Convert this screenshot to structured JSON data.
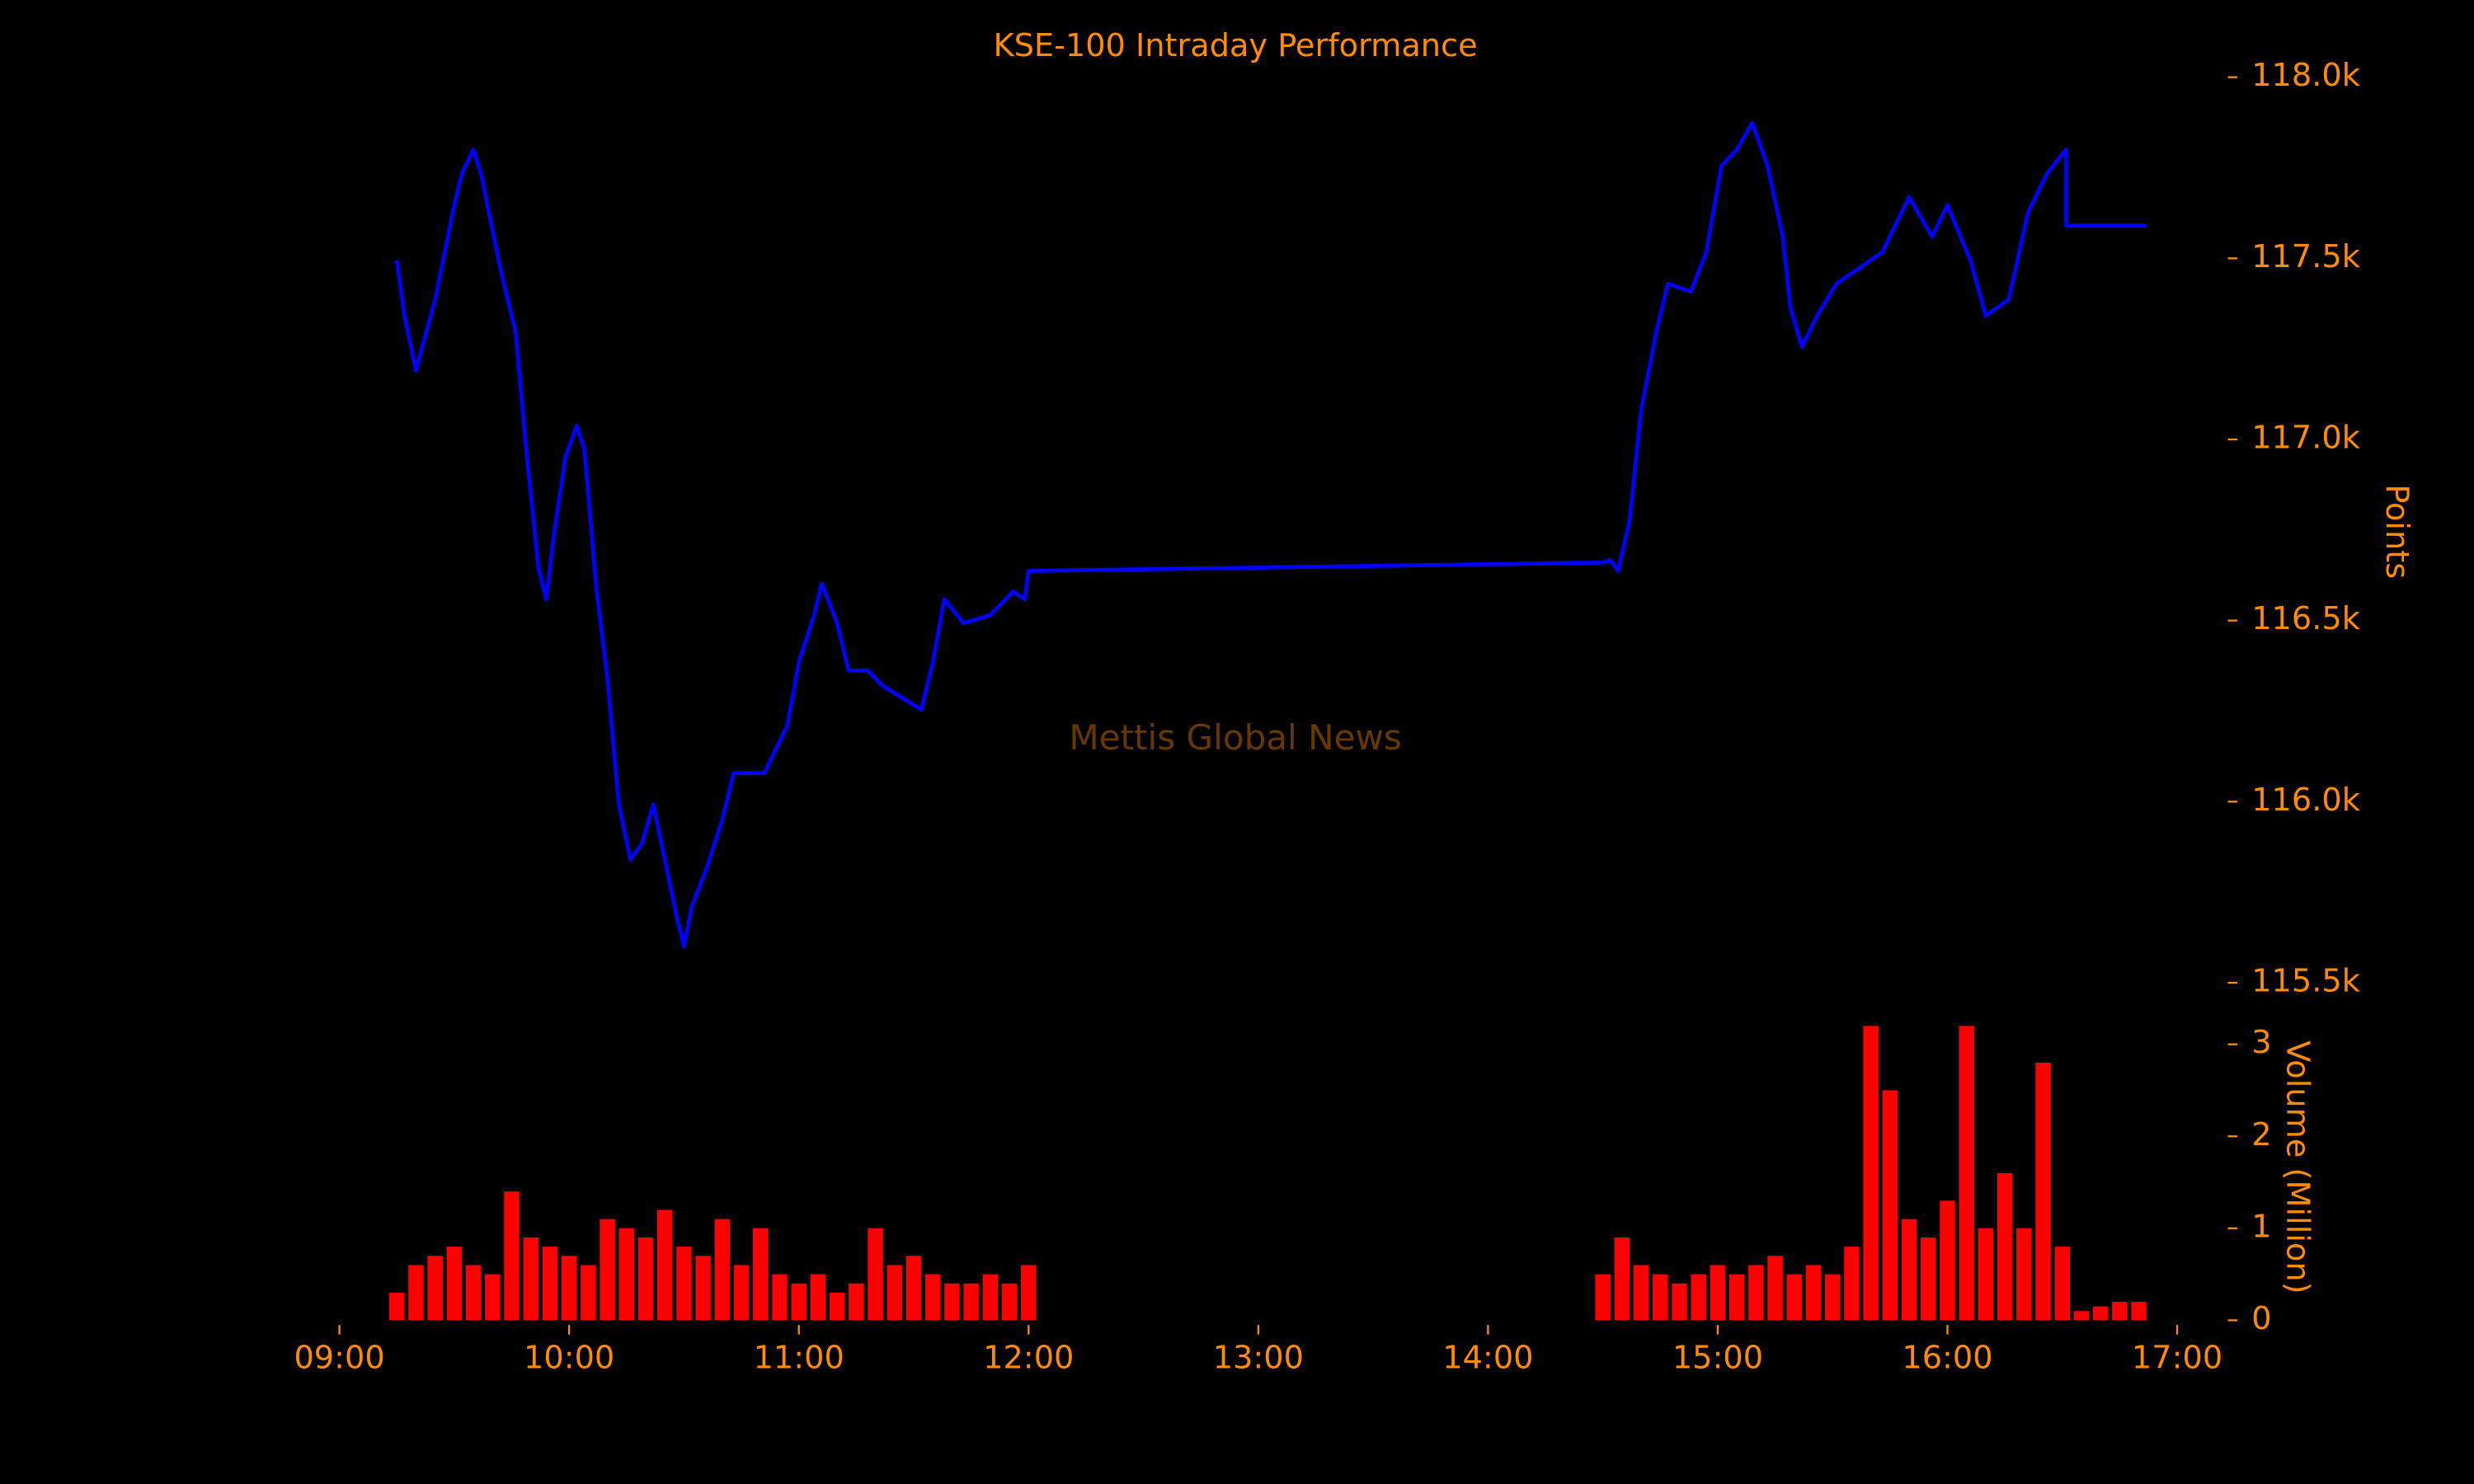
{
  "chart_data": [
    {
      "type": "line",
      "title": "KSE-100 Intraday Performance",
      "ylabel": "Points",
      "annotation": "Mettis Global News",
      "xlim": [
        "08:44",
        "17:16"
      ],
      "ylim": [
        115450,
        118100
      ],
      "yticks": [
        {
          "value": 115500,
          "label": "115.5k"
        },
        {
          "value": 116000,
          "label": "116.0k"
        },
        {
          "value": 116500,
          "label": "116.5k"
        },
        {
          "value": 117000,
          "label": "117.0k"
        },
        {
          "value": 117500,
          "label": "117.5k"
        },
        {
          "value": 118000,
          "label": "118.0k"
        }
      ],
      "series": [
        {
          "name": "KSE-100",
          "color": "#0000ff",
          "x": [
            "09:15",
            "09:17",
            "09:20",
            "09:25",
            "09:30",
            "09:32",
            "09:35",
            "09:37",
            "09:42",
            "09:46",
            "09:49",
            "09:52",
            "09:54",
            "09:56",
            "09:59",
            "10:02",
            "10:04",
            "10:07",
            "10:10",
            "10:13",
            "10:16",
            "10:19",
            "10:22",
            "10:25",
            "10:28",
            "10:30",
            "10:32",
            "10:36",
            "10:40",
            "10:43",
            "10:51",
            "10:57",
            "11:00",
            "11:04",
            "11:06",
            "11:10",
            "11:13",
            "11:18",
            "11:22",
            "11:25",
            "11:32",
            "11:35",
            "11:38",
            "11:43",
            "11:50",
            "11:56",
            "11:59",
            "12:00",
            "14:30",
            "14:32",
            "14:34",
            "14:37",
            "14:40",
            "14:44",
            "14:47",
            "14:53",
            "14:57",
            "15:01",
            "15:05",
            "15:09",
            "15:13",
            "15:17",
            "15:19",
            "15:22",
            "15:26",
            "15:31",
            "15:37",
            "15:43",
            "15:50",
            "15:56",
            "16:00",
            "16:06",
            "16:10",
            "16:16",
            "16:21",
            "16:26",
            "16:31",
            "16:31",
            "16:52"
          ],
          "values": [
            117495,
            117342,
            117190,
            117386,
            117647,
            117734,
            117800,
            117734,
            117473,
            117299,
            116950,
            116646,
            116559,
            116733,
            116950,
            117038,
            116972,
            116602,
            116341,
            115992,
            115840,
            115884,
            115992,
            115840,
            115688,
            115600,
            115709,
            115818,
            115949,
            116079,
            116079,
            116210,
            116384,
            116515,
            116602,
            116493,
            116362,
            116362,
            116319,
            116300,
            116254,
            116384,
            116559,
            116493,
            116515,
            116580,
            116559,
            116637,
            116660,
            116667,
            116637,
            116776,
            117081,
            117299,
            117430,
            117408,
            117517,
            117756,
            117800,
            117874,
            117756,
            117560,
            117364,
            117255,
            117342,
            117430,
            117473,
            117517,
            117669,
            117560,
            117647,
            117495,
            117342,
            117386,
            117625,
            117734,
            117800,
            117590,
            117590
          ]
        }
      ]
    },
    {
      "type": "bar",
      "ylabel": "Volume (Million)",
      "xlim": [
        "08:44",
        "17:16"
      ],
      "ylim": [
        0,
        3.2
      ],
      "yticks": [
        0,
        1,
        2,
        3
      ],
      "xticks": [
        "09:00",
        "10:00",
        "11:00",
        "12:00",
        "13:00",
        "14:00",
        "15:00",
        "16:00",
        "17:00"
      ],
      "series": [
        {
          "name": "Volume",
          "color": "#ff0000",
          "x": [
            "09:15",
            "09:20",
            "09:25",
            "09:30",
            "09:35",
            "09:40",
            "09:45",
            "09:50",
            "09:55",
            "10:00",
            "10:05",
            "10:10",
            "10:15",
            "10:20",
            "10:25",
            "10:30",
            "10:35",
            "10:40",
            "10:45",
            "10:50",
            "10:55",
            "11:00",
            "11:05",
            "11:10",
            "11:15",
            "11:20",
            "11:25",
            "11:30",
            "11:35",
            "11:40",
            "11:45",
            "11:50",
            "11:55",
            "12:00",
            "14:30",
            "14:35",
            "14:40",
            "14:45",
            "14:50",
            "14:55",
            "15:00",
            "15:05",
            "15:10",
            "15:15",
            "15:20",
            "15:25",
            "15:30",
            "15:35",
            "15:40",
            "15:45",
            "15:50",
            "15:55",
            "16:00",
            "16:05",
            "16:10",
            "16:15",
            "16:20",
            "16:25",
            "16:30",
            "16:35",
            "16:40",
            "16:45",
            "16:50"
          ],
          "values": [
            0.3,
            0.6,
            0.7,
            0.8,
            0.6,
            0.5,
            1.4,
            0.9,
            0.8,
            0.7,
            0.6,
            1.1,
            1.0,
            0.9,
            1.2,
            0.8,
            0.7,
            1.1,
            0.6,
            1.0,
            0.5,
            0.4,
            0.5,
            0.3,
            0.4,
            1.0,
            0.6,
            0.7,
            0.5,
            0.4,
            0.4,
            0.5,
            0.4,
            0.6,
            0.5,
            0.9,
            0.6,
            0.5,
            0.4,
            0.5,
            0.6,
            0.5,
            0.6,
            0.7,
            0.5,
            0.6,
            0.5,
            0.8,
            3.2,
            2.5,
            1.1,
            0.9,
            1.3,
            3.2,
            1.0,
            1.6,
            1.0,
            2.8,
            0.8,
            0.1,
            0.15,
            0.2,
            0.2
          ]
        }
      ]
    }
  ]
}
